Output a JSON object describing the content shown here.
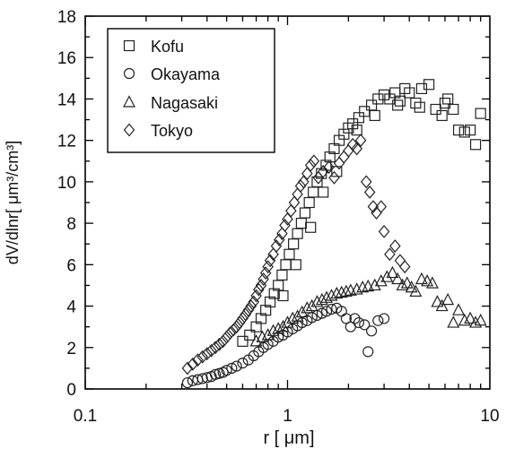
{
  "chart_data": {
    "type": "scatter",
    "x_scale": "log",
    "xlim": [
      0.1,
      10
    ],
    "ylim": [
      0,
      18
    ],
    "xlabel": "r [ μm]",
    "ylabel": "dV/dlnr[ μm³/cm³]",
    "x_tick_labels": [
      "0.1",
      "1",
      "10"
    ],
    "y_tick_labels": [
      "0",
      "2",
      "4",
      "6",
      "8",
      "10",
      "12",
      "14",
      "16",
      "18"
    ],
    "grid": false,
    "legend": "top-left",
    "series": [
      {
        "name": "Kofu",
        "marker": "square",
        "points": [
          [
            0.6,
            2.3
          ],
          [
            0.65,
            2.6
          ],
          [
            0.7,
            3.0
          ],
          [
            0.74,
            3.4
          ],
          [
            0.78,
            3.8
          ],
          [
            0.82,
            4.2
          ],
          [
            0.86,
            4.6
          ],
          [
            0.9,
            5.0
          ],
          [
            0.94,
            5.5
          ],
          [
            0.98,
            6.0
          ],
          [
            1.02,
            6.5
          ],
          [
            1.07,
            7.0
          ],
          [
            1.12,
            7.5
          ],
          [
            1.17,
            8.0
          ],
          [
            1.22,
            8.5
          ],
          [
            1.28,
            9.0
          ],
          [
            1.34,
            9.5
          ],
          [
            1.4,
            10.0
          ],
          [
            1.47,
            10.4
          ],
          [
            1.55,
            10.8
          ],
          [
            1.62,
            11.2
          ],
          [
            1.7,
            11.6
          ],
          [
            1.8,
            12.0
          ],
          [
            1.9,
            12.3
          ],
          [
            2.0,
            12.6
          ],
          [
            2.1,
            12.8
          ],
          [
            2.25,
            13.1
          ],
          [
            2.4,
            13.4
          ],
          [
            2.6,
            13.7
          ],
          [
            2.8,
            14.0
          ],
          [
            3.0,
            14.2
          ],
          [
            3.2,
            14.0
          ],
          [
            3.4,
            14.3
          ],
          [
            3.6,
            13.9
          ],
          [
            3.8,
            14.5
          ],
          [
            4.0,
            14.3
          ],
          [
            4.3,
            13.8
          ],
          [
            4.6,
            14.5
          ],
          [
            5.0,
            14.7
          ],
          [
            5.4,
            13.5
          ],
          [
            5.8,
            13.2
          ],
          [
            6.2,
            14.0
          ],
          [
            6.6,
            13.5
          ],
          [
            7.0,
            12.5
          ],
          [
            7.5,
            12.4
          ],
          [
            8.0,
            12.5
          ],
          [
            8.5,
            11.8
          ],
          [
            9.0,
            13.3
          ],
          [
            0.95,
            4.5
          ],
          [
            1.1,
            6.0
          ],
          [
            1.3,
            7.8
          ],
          [
            1.5,
            9.5
          ],
          [
            1.75,
            10.5
          ],
          [
            2.2,
            12.5
          ],
          [
            2.7,
            13.2
          ],
          [
            3.5,
            13.7
          ],
          [
            4.5,
            13.6
          ],
          [
            6.0,
            13.8
          ]
        ]
      },
      {
        "name": "Okayama",
        "marker": "circle",
        "points": [
          [
            0.32,
            0.3
          ],
          [
            0.34,
            0.4
          ],
          [
            0.36,
            0.45
          ],
          [
            0.38,
            0.5
          ],
          [
            0.4,
            0.55
          ],
          [
            0.42,
            0.6
          ],
          [
            0.44,
            0.7
          ],
          [
            0.46,
            0.75
          ],
          [
            0.48,
            0.8
          ],
          [
            0.5,
            0.9
          ],
          [
            0.53,
            1.0
          ],
          [
            0.56,
            1.1
          ],
          [
            0.6,
            1.25
          ],
          [
            0.64,
            1.4
          ],
          [
            0.68,
            1.6
          ],
          [
            0.72,
            1.8
          ],
          [
            0.76,
            2.0
          ],
          [
            0.8,
            2.15
          ],
          [
            0.85,
            2.3
          ],
          [
            0.9,
            2.5
          ],
          [
            0.95,
            2.6
          ],
          [
            1.0,
            2.75
          ],
          [
            1.06,
            2.9
          ],
          [
            1.12,
            3.05
          ],
          [
            1.18,
            3.2
          ],
          [
            1.25,
            3.3
          ],
          [
            1.32,
            3.45
          ],
          [
            1.4,
            3.55
          ],
          [
            1.48,
            3.65
          ],
          [
            1.56,
            3.75
          ],
          [
            1.65,
            3.85
          ],
          [
            1.75,
            3.9
          ],
          [
            1.85,
            3.75
          ],
          [
            1.95,
            3.4
          ],
          [
            2.05,
            3.0
          ],
          [
            2.15,
            3.4
          ],
          [
            2.25,
            3.2
          ],
          [
            2.4,
            3.1
          ],
          [
            2.5,
            1.8
          ],
          [
            2.6,
            2.8
          ],
          [
            2.8,
            3.3
          ],
          [
            3.0,
            3.4
          ]
        ]
      },
      {
        "name": "Nagasaki",
        "marker": "triangle",
        "points": [
          [
            0.7,
            2.3
          ],
          [
            0.75,
            2.5
          ],
          [
            0.8,
            2.6
          ],
          [
            0.85,
            2.8
          ],
          [
            0.9,
            2.9
          ],
          [
            0.95,
            3.0
          ],
          [
            1.0,
            3.2
          ],
          [
            1.06,
            3.4
          ],
          [
            1.12,
            3.5
          ],
          [
            1.18,
            3.7
          ],
          [
            1.25,
            3.9
          ],
          [
            1.32,
            4.0
          ],
          [
            1.4,
            4.2
          ],
          [
            1.48,
            4.3
          ],
          [
            1.56,
            4.4
          ],
          [
            1.65,
            4.5
          ],
          [
            1.75,
            4.6
          ],
          [
            1.85,
            4.65
          ],
          [
            1.95,
            4.7
          ],
          [
            2.05,
            4.75
          ],
          [
            2.2,
            4.8
          ],
          [
            2.35,
            4.9
          ],
          [
            2.5,
            4.95
          ],
          [
            2.7,
            5.0
          ],
          [
            2.9,
            5.2
          ],
          [
            3.1,
            5.4
          ],
          [
            3.3,
            5.6
          ],
          [
            3.5,
            5.3
          ],
          [
            3.7,
            5.0
          ],
          [
            3.9,
            5.1
          ],
          [
            4.1,
            4.9
          ],
          [
            4.3,
            4.7
          ],
          [
            4.6,
            5.3
          ],
          [
            4.9,
            5.2
          ],
          [
            5.2,
            5.1
          ],
          [
            5.5,
            4.2
          ],
          [
            5.8,
            4.0
          ],
          [
            6.2,
            4.3
          ],
          [
            6.6,
            3.2
          ],
          [
            7.0,
            3.8
          ],
          [
            7.5,
            3.3
          ],
          [
            8.0,
            3.4
          ],
          [
            8.5,
            3.2
          ],
          [
            9.0,
            3.3
          ]
        ]
      },
      {
        "name": "Tokyo",
        "marker": "diamond",
        "points": [
          [
            0.32,
            1.0
          ],
          [
            0.34,
            1.2
          ],
          [
            0.36,
            1.4
          ],
          [
            0.38,
            1.55
          ],
          [
            0.4,
            1.7
          ],
          [
            0.42,
            1.85
          ],
          [
            0.44,
            2.0
          ],
          [
            0.46,
            2.15
          ],
          [
            0.48,
            2.3
          ],
          [
            0.5,
            2.5
          ],
          [
            0.52,
            2.7
          ],
          [
            0.54,
            2.85
          ],
          [
            0.56,
            3.0
          ],
          [
            0.58,
            3.2
          ],
          [
            0.6,
            3.4
          ],
          [
            0.62,
            3.6
          ],
          [
            0.64,
            3.8
          ],
          [
            0.66,
            4.0
          ],
          [
            0.68,
            4.2
          ],
          [
            0.7,
            4.5
          ],
          [
            0.72,
            4.8
          ],
          [
            0.74,
            5.0
          ],
          [
            0.76,
            5.3
          ],
          [
            0.78,
            5.6
          ],
          [
            0.8,
            5.9
          ],
          [
            0.82,
            6.2
          ],
          [
            0.85,
            6.5
          ],
          [
            0.88,
            6.9
          ],
          [
            0.91,
            7.2
          ],
          [
            0.94,
            7.5
          ],
          [
            0.97,
            7.9
          ],
          [
            1.0,
            8.2
          ],
          [
            1.04,
            8.6
          ],
          [
            1.08,
            9.0
          ],
          [
            1.12,
            9.4
          ],
          [
            1.16,
            9.8
          ],
          [
            1.2,
            10.0
          ],
          [
            1.25,
            10.4
          ],
          [
            1.3,
            10.8
          ],
          [
            1.35,
            11.0
          ],
          [
            1.42,
            10.2
          ],
          [
            1.5,
            10.5
          ],
          [
            1.6,
            10.7
          ],
          [
            1.7,
            10.2
          ],
          [
            1.8,
            10.9
          ],
          [
            1.9,
            11.2
          ],
          [
            2.0,
            11.5
          ],
          [
            2.1,
            11.8
          ],
          [
            2.2,
            11.6
          ],
          [
            2.3,
            12.0
          ],
          [
            2.45,
            10.0
          ],
          [
            2.55,
            9.5
          ],
          [
            2.65,
            8.8
          ],
          [
            2.75,
            8.5
          ],
          [
            2.9,
            8.8
          ],
          [
            3.0,
            7.6
          ],
          [
            3.2,
            6.5
          ],
          [
            3.4,
            6.9
          ],
          [
            3.6,
            6.2
          ],
          [
            3.8,
            5.9
          ]
        ]
      }
    ]
  }
}
